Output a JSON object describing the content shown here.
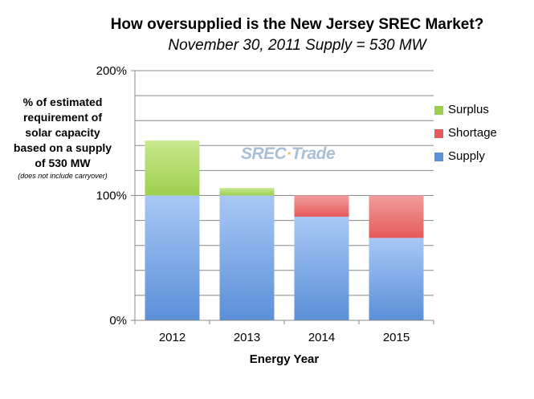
{
  "title": "How oversupplied is the New Jersey SREC Market?",
  "subtitle": "November 30, 2011 Supply = 530 MW",
  "ylabel_lines": [
    "% of estimated",
    "requirement of",
    "solar capacity",
    "based on a supply",
    "of 530 MW"
  ],
  "ylabel_note": "(does not include carryover)",
  "watermark": {
    "left": "SREC",
    "right": "Trade"
  },
  "colors": {
    "supply": "#5b8fd8",
    "shortage": "#e55a5a",
    "surplus": "#9dcf4e",
    "grid": "#888888"
  },
  "chart_data": {
    "type": "bar",
    "stacked": true,
    "title": "How oversupplied is the New Jersey SREC Market?",
    "subtitle": "November 30, 2011 Supply = 530 MW",
    "xlabel": "Energy Year",
    "ylabel": "% of estimated requirement of solar capacity based on a supply of 530 MW",
    "categories": [
      "2012",
      "2013",
      "2014",
      "2015"
    ],
    "ylim": [
      0,
      200
    ],
    "yticks": [
      0,
      100,
      200
    ],
    "ytick_labels": [
      "0%",
      "100%",
      "200%"
    ],
    "minor_gridlines_every": 20,
    "legend_position": "right",
    "series": [
      {
        "name": "Supply",
        "values": [
          100,
          100,
          83,
          66
        ]
      },
      {
        "name": "Shortage",
        "values": [
          0,
          0,
          17,
          34
        ]
      },
      {
        "name": "Surplus",
        "values": [
          44,
          6,
          0,
          0
        ]
      }
    ]
  }
}
